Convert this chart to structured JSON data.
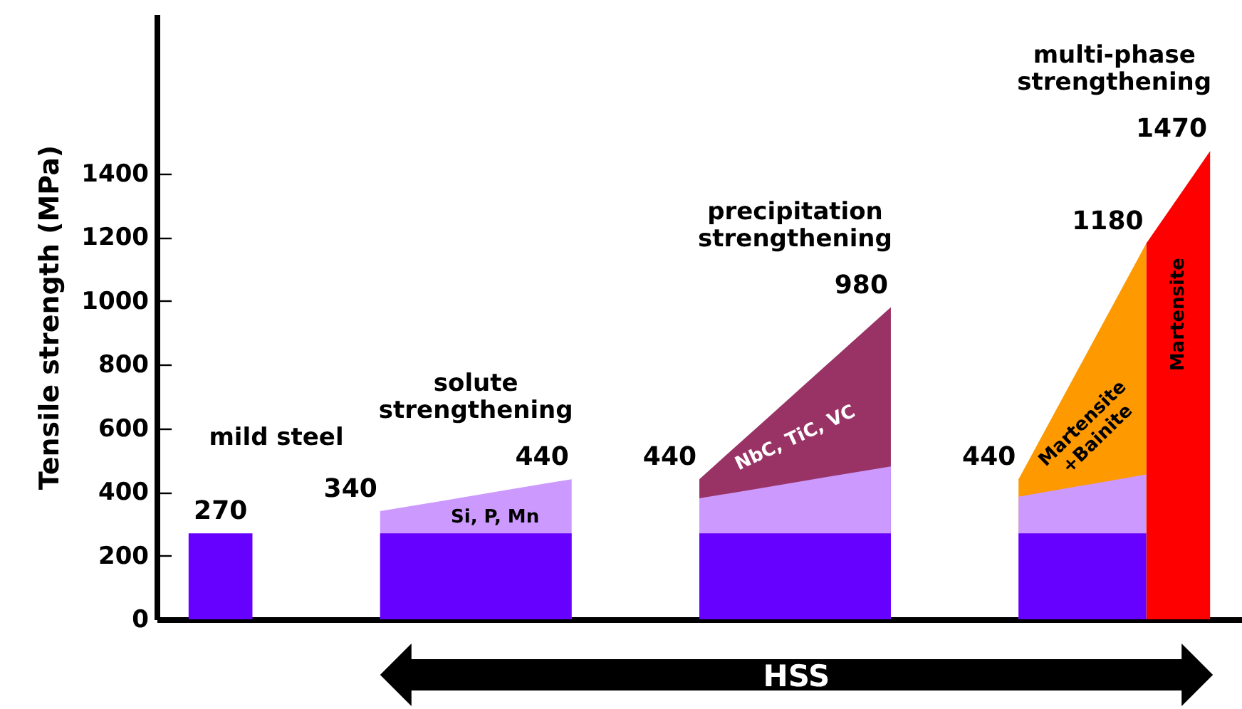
{
  "chart_data": {
    "type": "area",
    "tick_labels": "y",
    "grid": false,
    "ylabel": "Tensile strength (MPa)",
    "ylim": [
      0,
      1900
    ],
    "yticks": [
      0,
      200,
      400,
      600,
      800,
      1000,
      1200,
      1400
    ],
    "categories": [
      null,
      null,
      null,
      null,
      null,
      null,
      null,
      null,
      null,
      null,
      null,
      null,
      null,
      null,
      null,
      null,
      null
    ],
    "series": [
      {
        "name": "Martensite",
        "color": "#ff0000",
        "values": [
          null,
          null,
          null,
          null,
          null,
          null,
          null,
          null,
          null,
          null,
          null,
          null,
          null,
          null,
          null,
          1180,
          1470
        ],
        "value_labels": [
          null,
          null,
          null,
          null,
          null,
          null,
          null,
          null,
          null,
          null,
          null,
          null,
          null,
          null,
          null,
          null,
          "1470"
        ]
      },
      {
        "name": "Martensite\n+Bainite",
        "color": "#ff9900",
        "values": [
          null,
          null,
          null,
          null,
          null,
          null,
          null,
          null,
          null,
          null,
          null,
          null,
          null,
          440,
          810,
          1180,
          null
        ],
        "value_labels": [
          null,
          null,
          null,
          null,
          null,
          null,
          null,
          null,
          null,
          null,
          null,
          null,
          null,
          "440",
          null,
          "1180",
          null
        ]
      },
      {
        "name": "NbC, TiC, VC",
        "color": "#993366",
        "values": [
          null,
          null,
          null,
          null,
          null,
          null,
          null,
          null,
          440,
          620,
          800,
          980,
          null,
          null,
          null,
          null,
          null
        ],
        "value_labels": [
          null,
          null,
          null,
          null,
          null,
          null,
          null,
          null,
          "440",
          null,
          null,
          "980",
          null,
          null,
          null,
          null,
          null
        ]
      },
      {
        "name": "Si, P, Mn",
        "color": "#cc99ff",
        "values": [
          null,
          null,
          null,
          340,
          373,
          407,
          440,
          null,
          380,
          413,
          447,
          480,
          null,
          385,
          420,
          455,
          null
        ],
        "value_labels": [
          null,
          null,
          null,
          "340",
          null,
          null,
          "440",
          null,
          null,
          null,
          null,
          null,
          null,
          null,
          null,
          null,
          null
        ]
      },
      {
        "color": "#6600ff",
        "values": [
          270,
          270,
          null,
          270,
          270,
          270,
          270,
          null,
          270,
          270,
          270,
          270,
          null,
          270,
          270,
          270,
          null
        ],
        "value_labels": [
          "270",
          null,
          null,
          null,
          null,
          null,
          null,
          null,
          null,
          null,
          null,
          null,
          null,
          null,
          null,
          null,
          null
        ]
      }
    ],
    "annotations": [
      "mild steel",
      "solute\nstrengthening",
      "precipitation\nstrengthening",
      "multi-phase\nstrengthening",
      "HSS"
    ]
  }
}
